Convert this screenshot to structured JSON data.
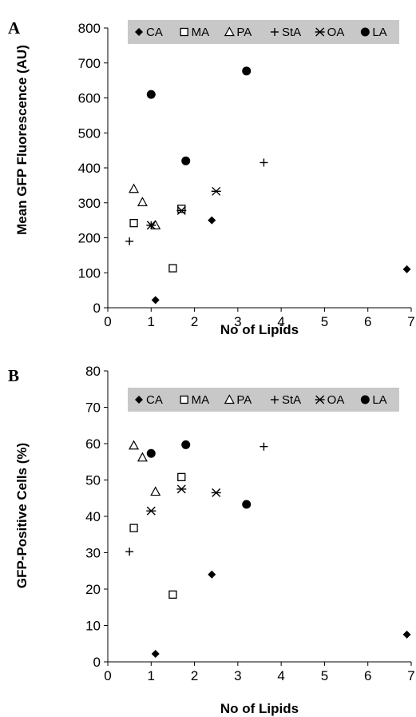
{
  "chart_data": [
    {
      "panel": "A",
      "type": "scatter",
      "xlabel": "No of Lipids",
      "ylabel": "Mean GFP Fluorescence (AU)",
      "xlim": [
        0,
        7
      ],
      "ylim": [
        0,
        800
      ],
      "xticks": [
        "0",
        "1",
        "2",
        "3",
        "4",
        "5",
        "6",
        "7"
      ],
      "yticks": [
        "0",
        "100",
        "200",
        "300",
        "400",
        "500",
        "600",
        "700",
        "800"
      ],
      "grid": false,
      "legend_position": "top",
      "series": [
        {
          "name": "CA",
          "marker": "diamond-filled",
          "points": [
            [
              1.1,
              22
            ],
            [
              2.4,
              250
            ],
            [
              6.9,
              110
            ]
          ]
        },
        {
          "name": "MA",
          "marker": "square-open",
          "points": [
            [
              0.6,
              242
            ],
            [
              1.5,
              113
            ],
            [
              1.7,
              283
            ]
          ]
        },
        {
          "name": "PA",
          "marker": "triangle-open",
          "points": [
            [
              0.6,
              340
            ],
            [
              0.8,
              302
            ],
            [
              1.1,
              236
            ]
          ]
        },
        {
          "name": "StA",
          "marker": "plus",
          "points": [
            [
              0.5,
              190
            ],
            [
              1.0,
              236
            ],
            [
              3.6,
              415
            ]
          ]
        },
        {
          "name": "OA",
          "marker": "star",
          "points": [
            [
              1.0,
              236
            ],
            [
              1.7,
              278
            ],
            [
              2.5,
              333
            ]
          ]
        },
        {
          "name": "LA",
          "marker": "circle-filled",
          "points": [
            [
              1.0,
              610
            ],
            [
              1.8,
              420
            ],
            [
              3.2,
              677
            ]
          ]
        }
      ]
    },
    {
      "panel": "B",
      "type": "scatter",
      "xlabel": "No of Lipids",
      "ylabel": "GFP-Positive Cells (%)",
      "xlim": [
        0,
        7
      ],
      "ylim": [
        0,
        80
      ],
      "xticks": [
        "0",
        "1",
        "2",
        "3",
        "4",
        "5",
        "6",
        "7"
      ],
      "yticks": [
        "0",
        "10",
        "20",
        "30",
        "40",
        "50",
        "60",
        "70",
        "80"
      ],
      "grid": false,
      "legend_position": "top",
      "series": [
        {
          "name": "CA",
          "marker": "diamond-filled",
          "points": [
            [
              1.1,
              2.2
            ],
            [
              2.4,
              24
            ],
            [
              6.9,
              7.5
            ]
          ]
        },
        {
          "name": "MA",
          "marker": "square-open",
          "points": [
            [
              0.6,
              36.8
            ],
            [
              1.5,
              18.5
            ],
            [
              1.7,
              50.8
            ]
          ]
        },
        {
          "name": "PA",
          "marker": "triangle-open",
          "points": [
            [
              0.6,
              59.5
            ],
            [
              0.8,
              56.2
            ],
            [
              1.1,
              46.8
            ]
          ]
        },
        {
          "name": "StA",
          "marker": "plus",
          "points": [
            [
              0.5,
              30.3
            ],
            [
              3.6,
              59.2
            ]
          ]
        },
        {
          "name": "OA",
          "marker": "star",
          "points": [
            [
              1.0,
              41.5
            ],
            [
              1.7,
              47.5
            ],
            [
              2.5,
              46.5
            ]
          ]
        },
        {
          "name": "LA",
          "marker": "circle-filled",
          "points": [
            [
              1.0,
              57.3
            ],
            [
              1.8,
              59.7
            ],
            [
              3.2,
              43.3
            ]
          ]
        }
      ]
    }
  ]
}
